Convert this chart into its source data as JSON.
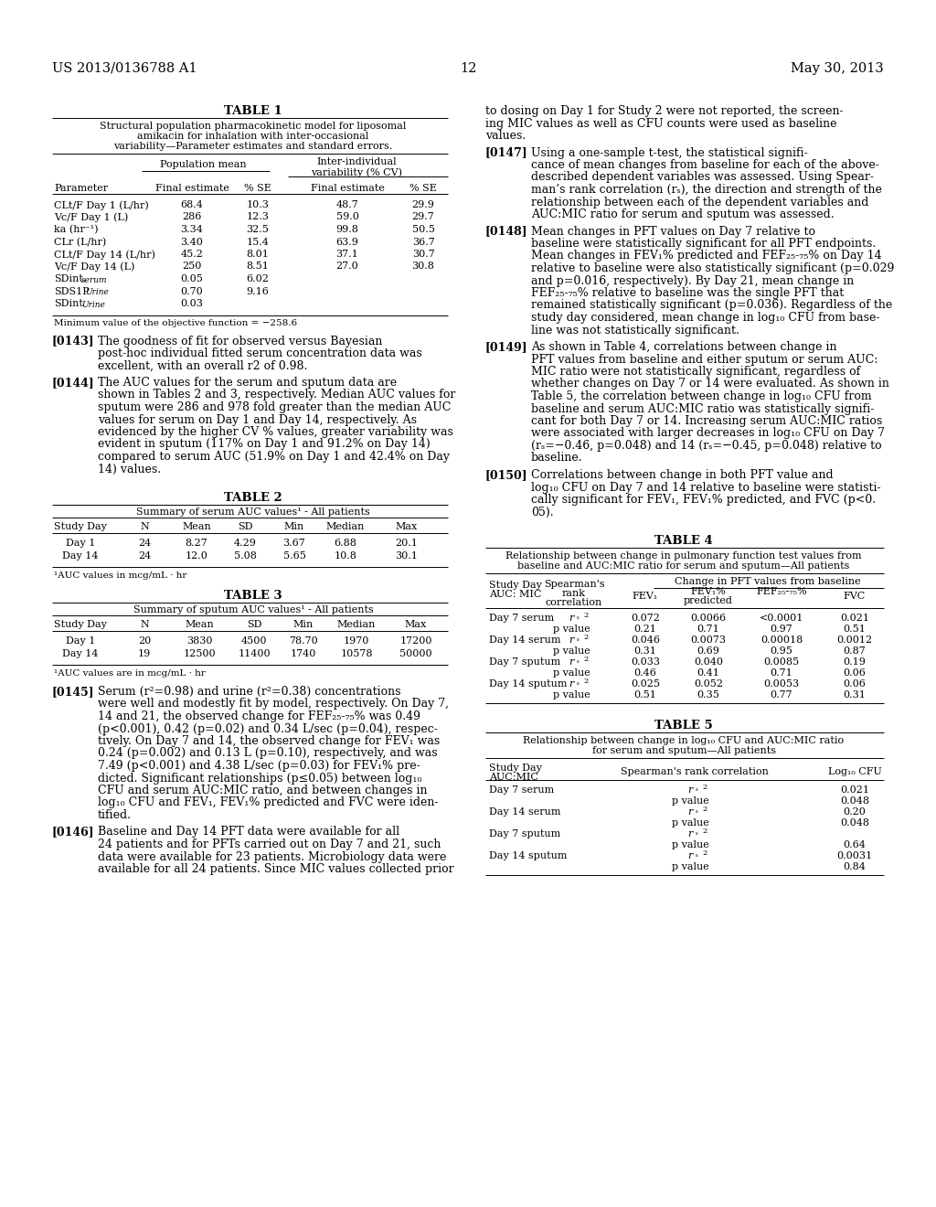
{
  "page_number": "12",
  "patent_number": "US 2013/0136788 A1",
  "date": "May 30, 2013",
  "background_color": "#ffffff",
  "text_color": "#000000",
  "table1": {
    "title": "TABLE 1",
    "subtitle_lines": [
      "Structural population pharmacokinetic model for liposomal",
      "amikacin for inhalation with inter-occasional",
      "variability—Parameter estimates and standard errors."
    ],
    "rows": [
      [
        "CLt/F Day 1 (L/hr)",
        "68.4",
        "10.3",
        "48.7",
        "29.9"
      ],
      [
        "Vc/F Day 1 (L)",
        "286",
        "12.3",
        "59.0",
        "29.7"
      ],
      [
        "ka (hr⁻¹)",
        "3.34",
        "32.5",
        "99.8",
        "50.5"
      ],
      [
        "CLr (L/hr)",
        "3.40",
        "15.4",
        "63.9",
        "36.7"
      ],
      [
        "CLt/F Day 14 (L/hr)",
        "45.2",
        "8.01",
        "37.1",
        "30.7"
      ],
      [
        "Vc/F Day 14 (L)",
        "250",
        "8.51",
        "27.0",
        "30.8"
      ],
      [
        "SDint_serum",
        "0.05",
        "6.02",
        "",
        ""
      ],
      [
        "SDS1P_Urine",
        "0.70",
        "9.16",
        "",
        ""
      ],
      [
        "SDint_Urine",
        "0.03",
        "",
        "",
        ""
      ]
    ],
    "footnote": "Minimum value of the objective function = −258.6"
  },
  "table2": {
    "title": "TABLE 2",
    "subtitle": "Summary of serum AUC values¹ - All patients",
    "headers": [
      "Study Day",
      "N",
      "Mean",
      "SD",
      "Min",
      "Median",
      "Max"
    ],
    "rows": [
      [
        "Day 1",
        "24",
        "8.27",
        "4.29",
        "3.67",
        "6.88",
        "20.1"
      ],
      [
        "Day 14",
        "24",
        "12.0",
        "5.08",
        "5.65",
        "10.8",
        "30.1"
      ]
    ],
    "footnote": "¹AUC values in mcg/mL · hr"
  },
  "table3": {
    "title": "TABLE 3",
    "subtitle": "Summary of sputum AUC values¹ - All patients",
    "headers": [
      "Study Day",
      "N",
      "Mean",
      "SD",
      "Min",
      "Median",
      "Max"
    ],
    "rows": [
      [
        "Day 1",
        "20",
        "3830",
        "4500",
        "78.70",
        "1970",
        "17200"
      ],
      [
        "Day 14",
        "19",
        "12500",
        "11400",
        "1740",
        "10578",
        "50000"
      ]
    ],
    "footnote": "¹AUC values are in mcg/mL · hr"
  },
  "table4": {
    "title": "TABLE 4",
    "subtitle_lines": [
      "Relationship between change in pulmonary function test values from",
      "baseline and AUC:MIC ratio for serum and sputum—All patients"
    ],
    "rows": [
      [
        "Day 7 serum",
        "r_s^2",
        "0.072",
        "0.0066",
        "<0.0001",
        "0.021"
      ],
      [
        "",
        "p value",
        "0.21",
        "0.71",
        "0.97",
        "0.51"
      ],
      [
        "Day 14 serum",
        "r_s^2",
        "0.046",
        "0.0073",
        "0.00018",
        "0.0012"
      ],
      [
        "",
        "p value",
        "0.31",
        "0.69",
        "0.95",
        "0.87"
      ],
      [
        "Day 7 sputum",
        "r_s^2",
        "0.033",
        "0.040",
        "0.0085",
        "0.19"
      ],
      [
        "",
        "p value",
        "0.46",
        "0.41",
        "0.71",
        "0.06"
      ],
      [
        "Day 14 sputum",
        "r_s^2",
        "0.025",
        "0.052",
        "0.0053",
        "0.06"
      ],
      [
        "",
        "p value",
        "0.51",
        "0.35",
        "0.77",
        "0.31"
      ]
    ]
  },
  "table5": {
    "title": "TABLE 5",
    "subtitle_lines": [
      "Relationship between change in log₁₀ CFU and AUC:MIC ratio",
      "for serum and sputum—All patients"
    ],
    "rows": [
      [
        "Day 7 serum",
        "r_s^2",
        "0.021"
      ],
      [
        "",
        "p value",
        "0.048"
      ],
      [
        "Day 14 serum",
        "r_s^2",
        "0.20"
      ],
      [
        "",
        "p value",
        "0.048"
      ],
      [
        "Day 7 sputum",
        "r_s^2",
        ""
      ],
      [
        "",
        "p value",
        "0.64"
      ],
      [
        "Day 14 sputum",
        "r_s^2",
        "0.0031"
      ],
      [
        "",
        "p value",
        "0.84"
      ]
    ]
  }
}
